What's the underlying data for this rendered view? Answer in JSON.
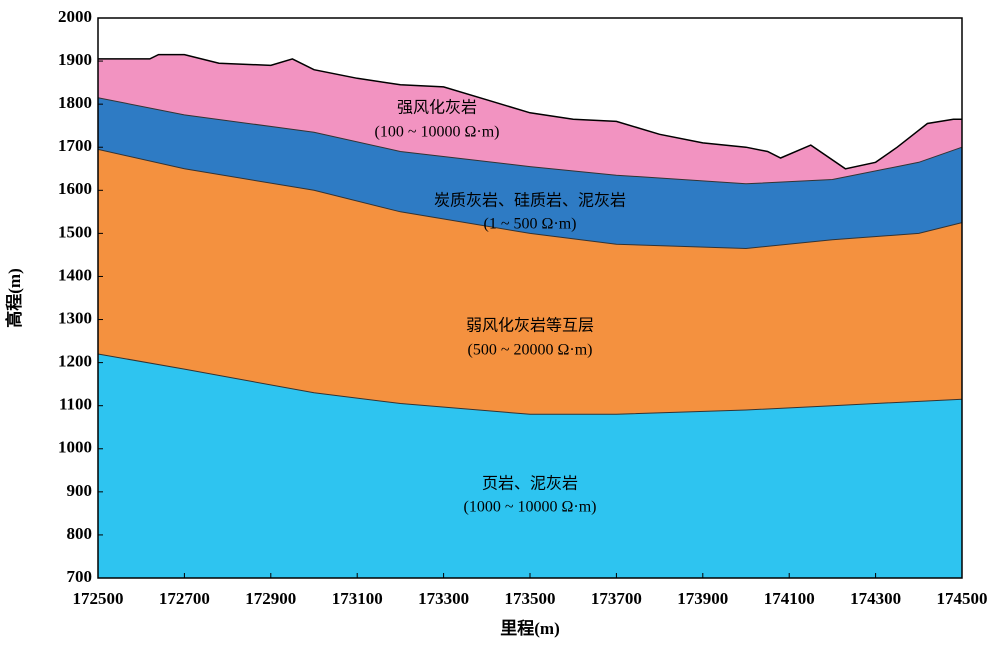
{
  "chart_data": {
    "type": "area",
    "xlabel": "里程(m)",
    "ylabel": "高程(m)",
    "xlim": [
      172500,
      174500
    ],
    "ylim": [
      700,
      2000
    ],
    "xticks": [
      172500,
      172700,
      172900,
      173100,
      173300,
      173500,
      173700,
      173900,
      174100,
      174300,
      174500
    ],
    "yticks": [
      700,
      800,
      900,
      1000,
      1100,
      1200,
      1300,
      1400,
      1500,
      1600,
      1700,
      1800,
      1900,
      2000
    ],
    "series": [
      {
        "name": "强风化灰岩",
        "resistivity": "(100 ~ 10000 Ω·m)",
        "color": "#f293c1",
        "x": [
          172500,
          172560,
          172620,
          172640,
          172700,
          172780,
          172900,
          172950,
          173000,
          173100,
          173200,
          173300,
          173400,
          173500,
          173600,
          173700,
          173800,
          173900,
          174000,
          174050,
          174080,
          174150,
          174230,
          174300,
          174350,
          174420,
          174480,
          174500
        ],
        "values": [
          1905,
          1905,
          1905,
          1915,
          1915,
          1895,
          1890,
          1905,
          1880,
          1860,
          1845,
          1840,
          1810,
          1780,
          1765,
          1760,
          1730,
          1710,
          1700,
          1690,
          1675,
          1705,
          1650,
          1665,
          1700,
          1755,
          1765,
          1765
        ]
      },
      {
        "name": "炭质灰岩、硅质岩、泥灰岩",
        "resistivity": "(1 ~ 500 Ω·m)",
        "color": "#2e7bc4",
        "x": [
          172500,
          172700,
          173000,
          173200,
          173500,
          173700,
          174000,
          174200,
          174400,
          174500
        ],
        "values": [
          1815,
          1775,
          1735,
          1690,
          1655,
          1635,
          1615,
          1625,
          1665,
          1700
        ]
      },
      {
        "name": "弱风化灰岩等互层",
        "resistivity": "(500 ~ 20000 Ω·m)",
        "color": "#f4913f",
        "x": [
          172500,
          172700,
          173000,
          173200,
          173500,
          173700,
          174000,
          174200,
          174400,
          174500
        ],
        "values": [
          1695,
          1650,
          1600,
          1550,
          1500,
          1475,
          1465,
          1485,
          1500,
          1525
        ]
      },
      {
        "name": "页岩、泥灰岩",
        "resistivity": "(1000  ~ 10000 Ω·m)",
        "color": "#2ec4f0",
        "x": [
          172500,
          172700,
          173000,
          173200,
          173500,
          173700,
          174000,
          174200,
          174500
        ],
        "values": [
          1220,
          1185,
          1130,
          1105,
          1080,
          1080,
          1090,
          1100,
          1115
        ]
      }
    ]
  }
}
